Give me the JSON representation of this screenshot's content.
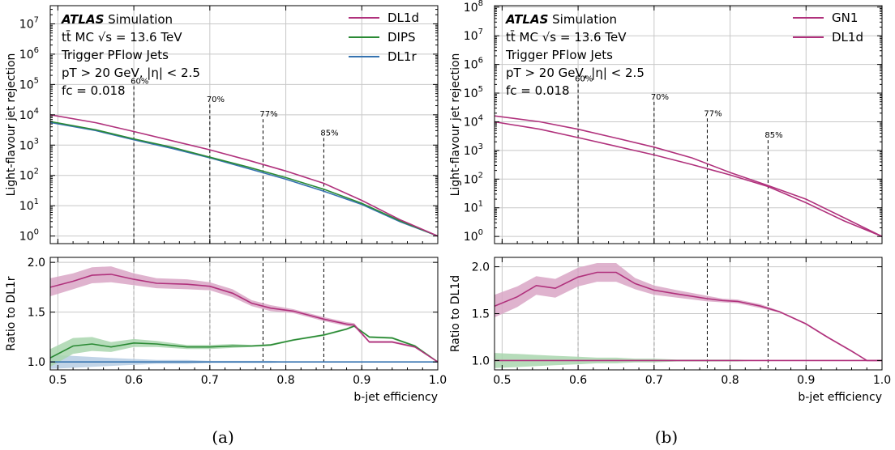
{
  "captions": [
    "(a)",
    "(b)"
  ],
  "colors": {
    "DL1d": "#b0317c",
    "DIPS": "#2a8a34",
    "DL1r": "#3673b0",
    "GN1": "#b0317c",
    "band_magenta": "#d9a6c6",
    "band_green": "#a9d6ae",
    "band_blue": "#b6cde3",
    "grid": "#c8c8c8"
  },
  "panels": [
    {
      "atlas": "ATLAS",
      "simulation": "Simulation",
      "info_lines": [
        "tt̄ MC √s = 13.6 TeV",
        "Trigger PFlow Jets",
        "pT > 20 GeV, |η| < 2.5",
        "fc = 0.018"
      ],
      "legend": [
        "DL1d",
        "DIPS",
        "DL1r"
      ],
      "wp_labels": [
        "60%",
        "70%",
        "77%",
        "85%"
      ]
    },
    {
      "atlas": "ATLAS",
      "simulation": "Simulation",
      "info_lines": [
        "tt̄ MC √s = 13.6 TeV",
        "Trigger PFlow Jets",
        "pT > 20 GeV, |η| < 2.5",
        "fc = 0.018"
      ],
      "legend": [
        "GN1",
        "DL1d"
      ],
      "wp_labels": [
        "60%",
        "70%",
        "77%",
        "85%"
      ]
    }
  ],
  "chart_data": [
    {
      "type": "line",
      "title": "",
      "xlabel": "b-jet efficiency",
      "ylabel": "Light-flavour jet rejection",
      "xlim": [
        0.49,
        1.0
      ],
      "ylim_log10": [
        -0.25,
        7.6
      ],
      "ylog": true,
      "x_ticks": [
        0.5,
        0.6,
        0.7,
        0.8,
        0.9,
        1.0
      ],
      "x_tick_labels": [
        "0.5",
        "0.6",
        "0.7",
        "0.8",
        "0.9",
        "1.0"
      ],
      "y_ticks_exp": [
        0,
        1,
        2,
        3,
        4,
        5,
        6,
        7
      ],
      "grid": true,
      "legend_position": "top-right",
      "working_points": [
        0.6,
        0.7,
        0.77,
        0.85
      ],
      "x": [
        0.49,
        0.55,
        0.6,
        0.65,
        0.7,
        0.75,
        0.8,
        0.85,
        0.9,
        0.95,
        1.0
      ],
      "series": [
        {
          "name": "DL1d",
          "values": [
            10000,
            5500,
            2800,
            1400,
            700,
            320,
            140,
            55,
            15,
            3.5,
            1
          ]
        },
        {
          "name": "DIPS",
          "values": [
            6000,
            3200,
            1600,
            850,
            400,
            190,
            85,
            35,
            12,
            3.2,
            1
          ]
        },
        {
          "name": "DL1r",
          "values": [
            5600,
            3000,
            1500,
            780,
            380,
            170,
            75,
            30,
            11,
            3.0,
            1
          ]
        }
      ],
      "ratio": {
        "ylabel": "Ratio to DL1r",
        "ylim": [
          0.92,
          2.05
        ],
        "y_ticks": [
          1.0,
          1.5,
          2.0
        ],
        "y_tick_labels": [
          "1.0",
          "1.5",
          "2.0"
        ],
        "x": [
          0.49,
          0.52,
          0.545,
          0.57,
          0.6,
          0.63,
          0.67,
          0.7,
          0.73,
          0.755,
          0.78,
          0.81,
          0.85,
          0.88,
          0.89,
          0.91,
          0.94,
          0.97,
          1.0
        ],
        "series": [
          {
            "name": "DL1d",
            "values": [
              1.75,
              1.81,
              1.87,
              1.88,
              1.83,
              1.79,
              1.78,
              1.76,
              1.69,
              1.59,
              1.54,
              1.51,
              1.43,
              1.38,
              1.37,
              1.2,
              1.2,
              1.15,
              1.0
            ],
            "band": [
              0.09,
              0.08,
              0.08,
              0.08,
              0.06,
              0.05,
              0.05,
              0.04,
              0.04,
              0.03,
              0.03,
              0.02,
              0.02,
              0.02,
              0.02,
              0.01,
              0.01,
              0.01,
              0.0
            ]
          },
          {
            "name": "DIPS",
            "values": [
              1.04,
              1.16,
              1.18,
              1.15,
              1.19,
              1.18,
              1.15,
              1.15,
              1.16,
              1.16,
              1.17,
              1.22,
              1.27,
              1.33,
              1.36,
              1.25,
              1.24,
              1.16,
              1.0
            ],
            "band": [
              0.09,
              0.08,
              0.07,
              0.05,
              0.04,
              0.03,
              0.02,
              0.02,
              0.02,
              0.01,
              0.01,
              0.01,
              0.01,
              0.01,
              0.01,
              0.01,
              0.01,
              0.01,
              0.0
            ]
          },
          {
            "name": "DL1r",
            "values": [
              1.0,
              1.0,
              1.0,
              1.0,
              1.0,
              1.0,
              1.0,
              1.0,
              1.0,
              1.0,
              1.0,
              1.0,
              1.0,
              1.0,
              1.0,
              1.0,
              1.0,
              1.0,
              1.0
            ],
            "band": [
              0.07,
              0.06,
              0.05,
              0.04,
              0.03,
              0.02,
              0.02,
              0.01,
              0.01,
              0.01,
              0.01,
              0.0,
              0.0,
              0.0,
              0.0,
              0.0,
              0.0,
              0.0,
              0.0
            ]
          }
        ]
      }
    },
    {
      "type": "line",
      "title": "",
      "xlabel": "b-jet efficiency",
      "ylabel": "Light-flavour jet rejection",
      "xlim": [
        0.49,
        1.0
      ],
      "ylim_log10": [
        -0.25,
        8.05
      ],
      "ylog": true,
      "x_ticks": [
        0.5,
        0.6,
        0.7,
        0.8,
        0.9,
        1.0
      ],
      "x_tick_labels": [
        "0.5",
        "0.6",
        "0.7",
        "0.8",
        "0.9",
        "1.0"
      ],
      "y_ticks_exp": [
        0,
        1,
        2,
        3,
        4,
        5,
        6,
        7,
        8
      ],
      "grid": true,
      "legend_position": "top-right",
      "working_points": [
        0.6,
        0.7,
        0.77,
        0.85
      ],
      "x": [
        0.49,
        0.55,
        0.6,
        0.65,
        0.7,
        0.75,
        0.8,
        0.85,
        0.9,
        0.95,
        1.0
      ],
      "series": [
        {
          "name": "GN1",
          "values": [
            16000,
            10000,
            5500,
            2700,
            1300,
            550,
            170,
            60,
            20,
            4.5,
            1
          ]
        },
        {
          "name": "DL1d",
          "values": [
            10000,
            5500,
            2800,
            1400,
            700,
            320,
            140,
            55,
            15,
            3.5,
            1
          ]
        }
      ],
      "ratio": {
        "ylabel": "Ratio to DL1d",
        "ylim": [
          0.9,
          2.1
        ],
        "y_ticks": [
          1.0,
          1.5,
          2.0
        ],
        "y_tick_labels": [
          "1.0",
          "1.5",
          "2.0"
        ],
        "x": [
          0.49,
          0.52,
          0.545,
          0.57,
          0.6,
          0.625,
          0.65,
          0.675,
          0.7,
          0.73,
          0.77,
          0.79,
          0.81,
          0.84,
          0.865,
          0.9,
          0.93,
          0.96,
          0.98,
          1.0
        ],
        "series": [
          {
            "name": "GN1",
            "values": [
              1.58,
              1.68,
              1.8,
              1.77,
              1.89,
              1.94,
              1.94,
              1.82,
              1.75,
              1.71,
              1.66,
              1.64,
              1.63,
              1.58,
              1.52,
              1.39,
              1.24,
              1.1,
              1.0,
              1.0
            ],
            "band": [
              0.12,
              0.11,
              0.1,
              0.1,
              0.1,
              0.1,
              0.1,
              0.06,
              0.05,
              0.04,
              0.03,
              0.02,
              0.02,
              0.02,
              0.01,
              0.01,
              0.01,
              0.01,
              0.0,
              0.0
            ]
          },
          {
            "name": "DL1d",
            "values": [
              1.0,
              1.0,
              1.0,
              1.0,
              1.0,
              1.0,
              1.0,
              1.0,
              1.0,
              1.0,
              1.0,
              1.0,
              1.0,
              1.0,
              1.0,
              1.0,
              1.0,
              1.0,
              1.0,
              1.0
            ],
            "band": [
              0.08,
              0.07,
              0.06,
              0.05,
              0.04,
              0.03,
              0.03,
              0.02,
              0.02,
              0.01,
              0.01,
              0.01,
              0.01,
              0.0,
              0.0,
              0.0,
              0.0,
              0.0,
              0.0,
              0.0
            ]
          }
        ]
      }
    }
  ]
}
